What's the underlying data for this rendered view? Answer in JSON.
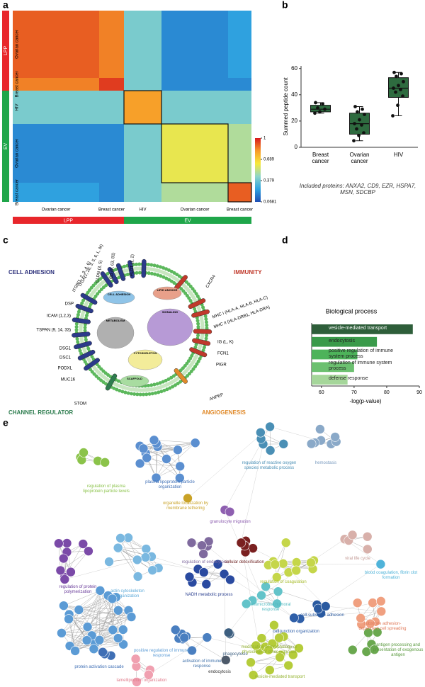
{
  "panel_labels": [
    "a",
    "b",
    "c",
    "d",
    "e"
  ],
  "chart_data": [
    {
      "type": "heatmap",
      "rows": [
        "Ovarian cancer",
        "Breast cancer",
        "HIV",
        "Ovarian cancer",
        "Breast cancer"
      ],
      "columns": [
        "Ovarian cancer",
        "Breast cancer",
        "HIV",
        "Ovarian cancer",
        "Breast cancer"
      ],
      "sections": [
        "LPP",
        "EV"
      ],
      "section_colors": [
        "#e8262b",
        "#1fa64a"
      ],
      "values": [
        [
          0.9,
          0.85,
          0.4,
          0.2,
          0.25
        ],
        [
          0.85,
          0.95,
          0.4,
          0.2,
          0.2
        ],
        [
          0.4,
          0.4,
          0.8,
          0.4,
          0.4
        ],
        [
          0.2,
          0.2,
          0.4,
          0.6,
          0.5
        ],
        [
          0.25,
          0.2,
          0.4,
          0.5,
          0.9
        ]
      ],
      "clim": [
        0.0681,
        1
      ],
      "colorbar_ticks": [
        0.0681,
        0.379,
        0.689,
        1
      ],
      "colormap": [
        "#1f4fb4",
        "#2fa3e0",
        "#8fd6c8",
        "#f7e93a",
        "#f79a28",
        "#d7191c"
      ]
    },
    {
      "type": "box",
      "ylabel": "Summed peptide count",
      "categories": [
        "Breast cancer",
        "Ovarian cancer",
        "HIV"
      ],
      "color": "#2e6b3f",
      "boxes": [
        {
          "min": 26,
          "q1": 27,
          "median": 29,
          "q3": 32,
          "max": 34
        },
        {
          "min": 5,
          "q1": 10,
          "median": 18,
          "q3": 26,
          "max": 31
        },
        {
          "min": 24,
          "q1": 38,
          "median": 45,
          "q3": 53,
          "max": 57
        }
      ],
      "points": [
        [
          26,
          27,
          29,
          30,
          33,
          34
        ],
        [
          5,
          9,
          11,
          14,
          17,
          18,
          21,
          25,
          27,
          29,
          31
        ],
        [
          24,
          32,
          39,
          42,
          44,
          45,
          47,
          50,
          54,
          56,
          57
        ]
      ],
      "ylim": [
        0,
        62
      ],
      "yticks": [
        0,
        20,
        40,
        60
      ],
      "note": "Included proteins: ANXA2, CD9, EZR, HSPA7, MSN, SDCBP"
    },
    {
      "type": "hbar",
      "title": "Biological process",
      "xlabel": "-log(p-value)",
      "categories": [
        "vesicle-mediated transport",
        "endocytosis",
        "positive regulation of immune system process",
        "regulation of immune system process",
        "defense response"
      ],
      "values": [
        88,
        77,
        71,
        70,
        68
      ],
      "colors": [
        "#2e5e3a",
        "#3a9a4a",
        "#4db35a",
        "#6cc070",
        "#a5d69a"
      ],
      "xlim": [
        57,
        90
      ],
      "xticks": [
        60,
        70,
        80,
        90
      ]
    }
  ],
  "diagram": {
    "groups": [
      {
        "label": "CELL ADHESION",
        "color": "#2b2f7a"
      },
      {
        "label": "IMMUNITY",
        "color": "#c0392b"
      },
      {
        "label": "CHANNEL REGULATOR",
        "color": "#2e7d4f"
      },
      {
        "label": "ANGIOGENESIS",
        "color": "#e08a2a"
      }
    ],
    "proteins": [
      "ITGA(2, 2b, 3, 5, 6, L, M)",
      "ITGB(1, 2, 3, 4, 6)",
      "CLDN (3, 5)",
      "CD (9, 63, 81)",
      "FLOT (1, 2)",
      "DSP",
      "ICAM (1,2,3)",
      "TSPAN (9, 14, 33)",
      "DSG1",
      "DSC1",
      "PODXL",
      "MUC16",
      "STOM",
      "CXCR4",
      "MHC I (HLA-A, HLA-B, HLA-C)",
      "MHC II (HLA-DRB1, HLA-DRA)",
      "IG (L, K)",
      "FCN1",
      "PIGR",
      "ANPEP"
    ],
    "compartments": [
      "CELL ADHESION",
      "LIPID ANCHOR",
      "SIGNALING",
      "METABOLISM",
      "CYTOSKELETON",
      "SCAFFOLD"
    ]
  },
  "network": {
    "labels": [
      {
        "text": "regulation of plasma lipoprotein particle levels",
        "color": "#8bc34a"
      },
      {
        "text": "plasma lipoprotein particle organization",
        "color": "#3f6fb5"
      },
      {
        "text": "organelle localization by membrane tethering",
        "color": "#c9a227"
      },
      {
        "text": "regulation of reactive oxygen species metabolic process",
        "color": "#4a8fb5"
      },
      {
        "text": "hemostasis",
        "color": "#7a9bbf"
      },
      {
        "text": "granulocyte migration",
        "color": "#8e5fb0"
      },
      {
        "text": "regulation of protein polymerization",
        "color": "#6a3d9a"
      },
      {
        "text": "actin cytoskeleton organization",
        "color": "#5aa8d8"
      },
      {
        "text": "regulation of endocytosis",
        "color": "#7f6a9e"
      },
      {
        "text": "cellular detoxification",
        "color": "#6b1f1f"
      },
      {
        "text": "regulation of coagulation",
        "color": "#a9bd2e"
      },
      {
        "text": "viral life cycle",
        "color": "#c29a94"
      },
      {
        "text": "blood coagulation, fibrin clot formation",
        "color": "#4fb3d9"
      },
      {
        "text": "NADH metabolic process",
        "color": "#2a3f8f"
      },
      {
        "text": "antimicrobial humoral response",
        "color": "#4fb8bf"
      },
      {
        "text": "cell-substrate adhesion",
        "color": "#2a5aa0"
      },
      {
        "text": "substrate adhesion-dependent cell spreading",
        "color": "#e07a5a"
      },
      {
        "text": "cell junction organization",
        "color": "#2f5fa8"
      },
      {
        "text": "modification of morphology or physiology of other organism",
        "color": "#93b22e"
      },
      {
        "text": "antigen processing and presentation of exogenous antigen",
        "color": "#5a9a3f"
      },
      {
        "text": "positive regulation of immune response",
        "color": "#5b9bd5"
      },
      {
        "text": "activation of immune response",
        "color": "#3d6fa8"
      },
      {
        "text": "phagocytosis",
        "color": "#3d5f80"
      },
      {
        "text": "endocytosis",
        "color": "#333333"
      },
      {
        "text": "vesicle-mediated transport",
        "color": "#93b22e"
      },
      {
        "text": "protein activation cascade",
        "color": "#3f6fb5"
      },
      {
        "text": "lamellipodium organization",
        "color": "#e07a8a"
      }
    ]
  }
}
